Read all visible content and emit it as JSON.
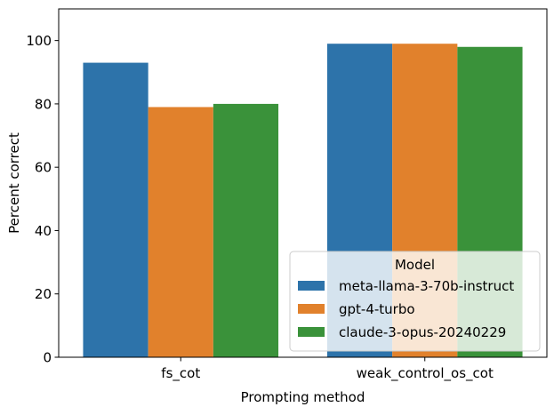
{
  "chart_data": {
    "type": "bar",
    "categories": [
      "fs_cot",
      "weak_control_os_cot"
    ],
    "series": [
      {
        "name": "meta-llama-3-70b-instruct",
        "color": "#2d73aa",
        "values": [
          93,
          99
        ]
      },
      {
        "name": "gpt-4-turbo",
        "color": "#e1812c",
        "values": [
          79,
          99
        ]
      },
      {
        "name": "claude-3-opus-20240229",
        "color": "#3a923a",
        "values": [
          80,
          98
        ]
      }
    ],
    "xlabel": "Prompting method",
    "ylabel": "Percent correct",
    "ylim": [
      0,
      110
    ],
    "yticks": [
      0,
      20,
      40,
      60,
      80,
      100
    ],
    "legend": {
      "title": "Model",
      "position": "lower-right"
    },
    "grid": false
  }
}
